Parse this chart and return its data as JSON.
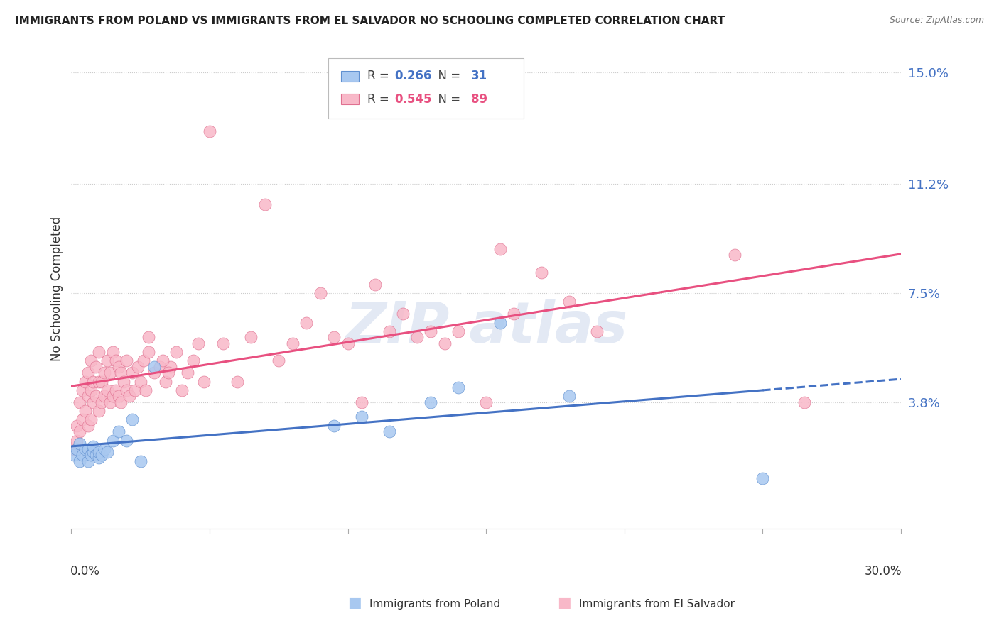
{
  "title": "IMMIGRANTS FROM POLAND VS IMMIGRANTS FROM EL SALVADOR NO SCHOOLING COMPLETED CORRELATION CHART",
  "source": "Source: ZipAtlas.com",
  "ylabel": "No Schooling Completed",
  "xlim": [
    0.0,
    0.3
  ],
  "ylim": [
    -0.005,
    0.158
  ],
  "yticks": [
    0.038,
    0.075,
    0.112,
    0.15
  ],
  "ytick_labels": [
    "3.8%",
    "7.5%",
    "11.2%",
    "15.0%"
  ],
  "poland_color": "#a8c8f0",
  "poland_edge_color": "#6090d0",
  "poland_line_color": "#4472c4",
  "elsalvador_color": "#f8b8c8",
  "elsalvador_edge_color": "#e07090",
  "elsalvador_line_color": "#e85080",
  "poland_R": 0.266,
  "poland_N": 31,
  "elsalvador_R": 0.545,
  "elsalvador_N": 89,
  "poland_scatter": [
    [
      0.001,
      0.02
    ],
    [
      0.002,
      0.022
    ],
    [
      0.003,
      0.018
    ],
    [
      0.003,
      0.024
    ],
    [
      0.004,
      0.02
    ],
    [
      0.005,
      0.022
    ],
    [
      0.006,
      0.018
    ],
    [
      0.006,
      0.022
    ],
    [
      0.007,
      0.02
    ],
    [
      0.008,
      0.021
    ],
    [
      0.008,
      0.023
    ],
    [
      0.009,
      0.02
    ],
    [
      0.01,
      0.019
    ],
    [
      0.01,
      0.021
    ],
    [
      0.011,
      0.02
    ],
    [
      0.012,
      0.022
    ],
    [
      0.013,
      0.021
    ],
    [
      0.015,
      0.025
    ],
    [
      0.017,
      0.028
    ],
    [
      0.02,
      0.025
    ],
    [
      0.022,
      0.032
    ],
    [
      0.025,
      0.018
    ],
    [
      0.03,
      0.05
    ],
    [
      0.095,
      0.03
    ],
    [
      0.105,
      0.033
    ],
    [
      0.115,
      0.028
    ],
    [
      0.13,
      0.038
    ],
    [
      0.14,
      0.043
    ],
    [
      0.155,
      0.065
    ],
    [
      0.18,
      0.04
    ],
    [
      0.25,
      0.012
    ]
  ],
  "elsalvador_scatter": [
    [
      0.001,
      0.022
    ],
    [
      0.002,
      0.025
    ],
    [
      0.002,
      0.03
    ],
    [
      0.003,
      0.028
    ],
    [
      0.003,
      0.038
    ],
    [
      0.004,
      0.032
    ],
    [
      0.004,
      0.042
    ],
    [
      0.005,
      0.035
    ],
    [
      0.005,
      0.045
    ],
    [
      0.006,
      0.03
    ],
    [
      0.006,
      0.04
    ],
    [
      0.006,
      0.048
    ],
    [
      0.007,
      0.032
    ],
    [
      0.007,
      0.042
    ],
    [
      0.007,
      0.052
    ],
    [
      0.008,
      0.038
    ],
    [
      0.008,
      0.045
    ],
    [
      0.009,
      0.04
    ],
    [
      0.009,
      0.05
    ],
    [
      0.01,
      0.035
    ],
    [
      0.01,
      0.045
    ],
    [
      0.01,
      0.055
    ],
    [
      0.011,
      0.038
    ],
    [
      0.011,
      0.045
    ],
    [
      0.012,
      0.04
    ],
    [
      0.012,
      0.048
    ],
    [
      0.013,
      0.042
    ],
    [
      0.013,
      0.052
    ],
    [
      0.014,
      0.038
    ],
    [
      0.014,
      0.048
    ],
    [
      0.015,
      0.04
    ],
    [
      0.015,
      0.055
    ],
    [
      0.016,
      0.042
    ],
    [
      0.016,
      0.052
    ],
    [
      0.017,
      0.04
    ],
    [
      0.017,
      0.05
    ],
    [
      0.018,
      0.038
    ],
    [
      0.018,
      0.048
    ],
    [
      0.019,
      0.045
    ],
    [
      0.02,
      0.042
    ],
    [
      0.02,
      0.052
    ],
    [
      0.021,
      0.04
    ],
    [
      0.022,
      0.048
    ],
    [
      0.023,
      0.042
    ],
    [
      0.024,
      0.05
    ],
    [
      0.025,
      0.045
    ],
    [
      0.026,
      0.052
    ],
    [
      0.027,
      0.042
    ],
    [
      0.028,
      0.055
    ],
    [
      0.03,
      0.048
    ],
    [
      0.032,
      0.05
    ],
    [
      0.034,
      0.045
    ],
    [
      0.036,
      0.05
    ],
    [
      0.038,
      0.055
    ],
    [
      0.04,
      0.042
    ],
    [
      0.042,
      0.048
    ],
    [
      0.044,
      0.052
    ],
    [
      0.046,
      0.058
    ],
    [
      0.048,
      0.045
    ],
    [
      0.05,
      0.13
    ],
    [
      0.055,
      0.058
    ],
    [
      0.06,
      0.045
    ],
    [
      0.065,
      0.06
    ],
    [
      0.07,
      0.105
    ],
    [
      0.075,
      0.052
    ],
    [
      0.08,
      0.058
    ],
    [
      0.085,
      0.065
    ],
    [
      0.09,
      0.075
    ],
    [
      0.095,
      0.06
    ],
    [
      0.1,
      0.058
    ],
    [
      0.105,
      0.038
    ],
    [
      0.11,
      0.078
    ],
    [
      0.115,
      0.062
    ],
    [
      0.12,
      0.068
    ],
    [
      0.125,
      0.06
    ],
    [
      0.13,
      0.062
    ],
    [
      0.135,
      0.058
    ],
    [
      0.14,
      0.062
    ],
    [
      0.15,
      0.038
    ],
    [
      0.155,
      0.09
    ],
    [
      0.16,
      0.068
    ],
    [
      0.17,
      0.082
    ],
    [
      0.18,
      0.072
    ],
    [
      0.19,
      0.062
    ],
    [
      0.24,
      0.088
    ],
    [
      0.265,
      0.038
    ],
    [
      0.028,
      0.06
    ],
    [
      0.033,
      0.052
    ],
    [
      0.035,
      0.048
    ]
  ]
}
